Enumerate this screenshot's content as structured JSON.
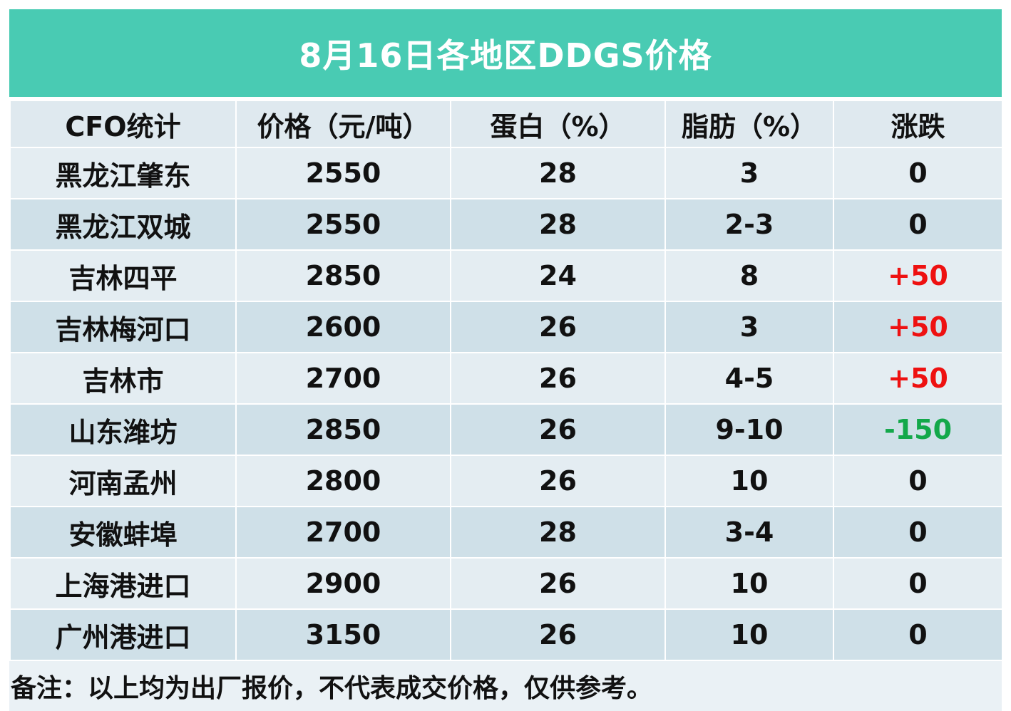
{
  "title": "8月16日各地区DDGS价格",
  "table": {
    "headers": [
      "CFO统计",
      "价格（元/吨）",
      "蛋白（%）",
      "脂肪（%）",
      "涨跌"
    ],
    "rows": [
      {
        "region": "黑龙江肇东",
        "price": "2550",
        "protein": "28",
        "fat": "3",
        "change": "0",
        "trend": "flat"
      },
      {
        "region": "黑龙江双城",
        "price": "2550",
        "protein": "28",
        "fat": "2-3",
        "change": "0",
        "trend": "flat"
      },
      {
        "region": "吉林四平",
        "price": "2850",
        "protein": "24",
        "fat": "8",
        "change": "+50",
        "trend": "up"
      },
      {
        "region": "吉林梅河口",
        "price": "2600",
        "protein": "26",
        "fat": "3",
        "change": "+50",
        "trend": "up"
      },
      {
        "region": "吉林市",
        "price": "2700",
        "protein": "26",
        "fat": "4-5",
        "change": "+50",
        "trend": "up"
      },
      {
        "region": "山东潍坊",
        "price": "2850",
        "protein": "26",
        "fat": "9-10",
        "change": "-150",
        "trend": "down"
      },
      {
        "region": "河南孟州",
        "price": "2800",
        "protein": "26",
        "fat": "10",
        "change": "0",
        "trend": "flat"
      },
      {
        "region": "安徽蚌埠",
        "price": "2700",
        "protein": "28",
        "fat": "3-4",
        "change": "0",
        "trend": "flat"
      },
      {
        "region": "上海港进口",
        "price": "2900",
        "protein": "26",
        "fat": "10",
        "change": "0",
        "trend": "flat"
      },
      {
        "region": "广州港进口",
        "price": "3150",
        "protein": "26",
        "fat": "10",
        "change": "0",
        "trend": "flat"
      }
    ]
  },
  "note": "备注：以上均为出厂报价，不代表成交价格，仅供参考。",
  "colors": {
    "title_bg": "#49cbb3",
    "up": "#ee1111",
    "down": "#13a84a"
  }
}
